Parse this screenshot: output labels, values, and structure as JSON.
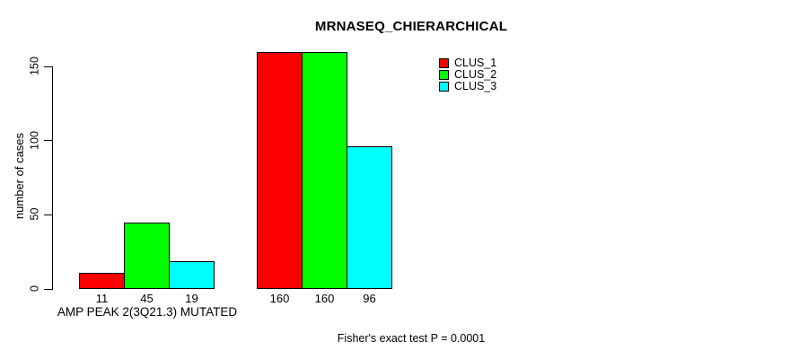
{
  "chart_data": {
    "type": "bar",
    "title": "MRNASEQ_CHIERARCHICAL",
    "ylabel": "number of cases",
    "xlabel": "",
    "categories": [
      "AMP PEAK 2(3Q21.3) MUTATED",
      ""
    ],
    "series": [
      {
        "name": "CLUS_1",
        "color": "#ff0000",
        "values": [
          11,
          160
        ]
      },
      {
        "name": "CLUS_2",
        "color": "#00ff00",
        "values": [
          45,
          160
        ]
      },
      {
        "name": "CLUS_3",
        "color": "#00ffff",
        "values": [
          19,
          96
        ]
      }
    ],
    "bar_value_labels": [
      [
        11,
        45,
        19
      ],
      [
        160,
        160,
        96
      ]
    ],
    "yticks": [
      0,
      50,
      100,
      150
    ],
    "ylim": [
      0,
      161
    ],
    "grid": false,
    "legend_position": "top-right",
    "legend_entries": [
      {
        "label": "CLUS_1",
        "color": "#ff0000"
      },
      {
        "label": "CLUS_2",
        "color": "#00ff00"
      },
      {
        "label": "CLUS_3",
        "color": "#00ffff"
      }
    ],
    "annotation": "Fisher's exact test P = 0.0001",
    "background_color": "#ffffff",
    "axis_color": "#000000",
    "bar_border_color": "#000000"
  }
}
